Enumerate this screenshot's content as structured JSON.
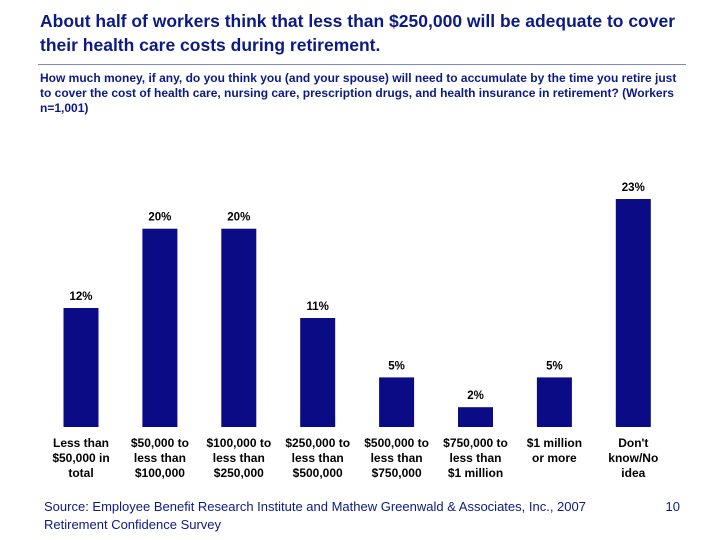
{
  "title": "About half of workers think that less than $250,000 will be adequate to cover their health care costs during retirement.",
  "subtitle": "How much money, if any, do you think you (and your spouse) will need to accumulate by the time you retire just to cover the cost of health care, nursing care, prescription drugs, and health insurance in retirement? (Workers n=1,001)",
  "source": "Source: Employee Benefit Research Institute and Mathew Greenwald & Associates, Inc., 2007 Retirement Confidence Survey",
  "page_number": "10",
  "colors": {
    "bar": "#0b0b85",
    "title": "#0b1a86"
  },
  "chart_data": {
    "type": "bar",
    "title": "",
    "xlabel": "",
    "ylabel": "",
    "ylim": [
      0,
      23
    ],
    "value_suffix": "%",
    "categories": [
      [
        "Less than",
        "$50,000 in",
        "total"
      ],
      [
        "$50,000 to",
        "less than",
        "$100,000"
      ],
      [
        "$100,000 to",
        "less than",
        "$250,000"
      ],
      [
        "$250,000 to",
        "less than",
        "$500,000"
      ],
      [
        "$500,000 to",
        "less than",
        "$750,000"
      ],
      [
        "$750,000 to",
        "less than",
        "$1 million"
      ],
      [
        "$1 million",
        "or more"
      ],
      [
        "Don't",
        "know/No",
        "idea"
      ]
    ],
    "values": [
      12,
      20,
      20,
      11,
      5,
      2,
      5,
      23
    ]
  }
}
